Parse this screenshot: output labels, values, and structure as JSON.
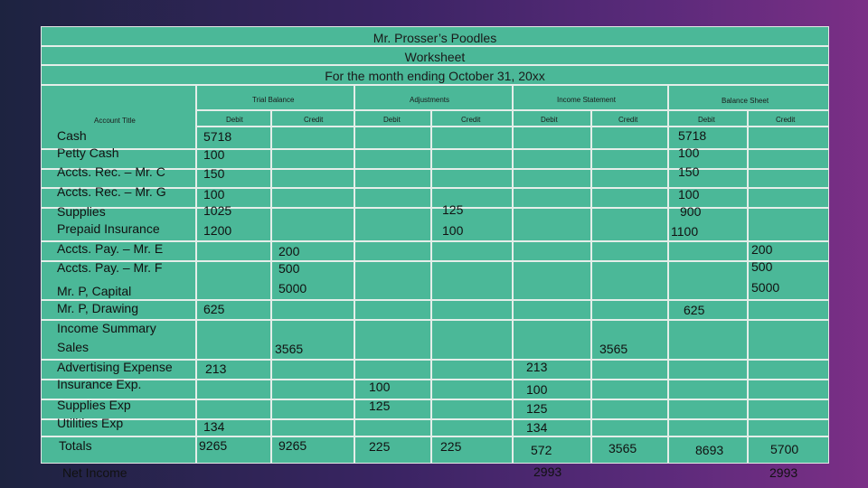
{
  "header": {
    "company": "Mr. Prosser’s Poodles",
    "doc": "Worksheet",
    "period": "For the month ending October 31, 20xx"
  },
  "sections": {
    "trial": "Trial Balance",
    "adjust": "Adjustments",
    "income": "Income Statement",
    "balance": "Balance Sheet"
  },
  "columns": {
    "account_title": "Account Title",
    "tb_debit": "Debit",
    "tb_credit": "Credit",
    "adj_debit": "Debit",
    "adj_credit": "Credit",
    "is_debit": "Debit",
    "is_credit": "Credit",
    "bs_debit": "Debit",
    "bs_credit": "Credit"
  },
  "accounts": [
    "Cash",
    "Petty Cash",
    "Accts. Rec. – Mr. C",
    "Accts. Rec. – Mr. G",
    "Supplies",
    "Prepaid Insurance",
    "Accts. Pay. – Mr. E",
    "Accts. Pay. – Mr. F",
    "Mr. P, Capital",
    "Mr. P, Drawing",
    "Income Summary",
    "Sales",
    "Advertising Expense",
    "Insurance Exp.",
    "Supplies  Exp",
    "Utilities Exp",
    "Totals"
  ],
  "values": {
    "tb_debit": [
      "5718",
      "100",
      "150",
      "100",
      "1025",
      "1200",
      "625",
      "213",
      "134",
      "9265"
    ],
    "tb_credit": [
      "200",
      "500",
      "5000",
      "3565",
      "9265"
    ],
    "adj_debit": [
      "100",
      "125",
      "225"
    ],
    "adj_credit": [
      "125",
      "100",
      "225"
    ],
    "is_debit": [
      "213",
      "100",
      "125",
      "134",
      "572"
    ],
    "is_credit": [
      "3565",
      "3565"
    ],
    "bs_debit": [
      "5718",
      "100",
      "150",
      "100",
      "900",
      "1100",
      "625",
      "8693"
    ],
    "bs_credit": [
      "200",
      "500",
      "5000",
      "5700"
    ]
  },
  "net_income": {
    "label": "Net Income",
    "is_debit": "2993",
    "bs_credit": "2993"
  }
}
